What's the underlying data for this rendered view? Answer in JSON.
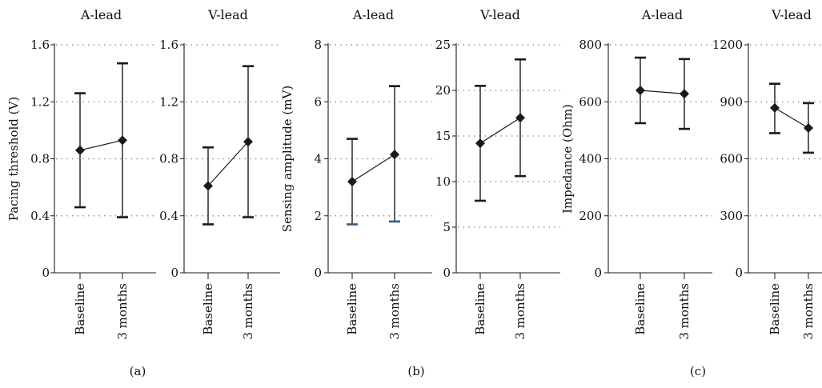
{
  "chart_data": [
    {
      "type": "line",
      "panel": "(a)",
      "title": "A-lead",
      "ylabel": "Pacing threshold (V)",
      "categories": [
        "Baseline",
        "3 months"
      ],
      "ylim": [
        0,
        1.6
      ],
      "yticks": [
        0,
        0.4,
        0.8,
        1.2,
        1.6
      ],
      "ytick_labels": [
        "0",
        "0.4",
        "0.8",
        "1.2",
        "1.6"
      ],
      "grid": "horizontal dotted",
      "series": [
        {
          "values": [
            0.86,
            0.93
          ],
          "err_low": [
            0.46,
            0.39
          ],
          "err_high": [
            1.26,
            1.47
          ]
        }
      ]
    },
    {
      "type": "line",
      "panel": "(a)",
      "title": "V-lead",
      "ylabel": "",
      "categories": [
        "Baseline",
        "3 months"
      ],
      "ylim": [
        0,
        1.6
      ],
      "yticks": [
        0,
        0.4,
        0.8,
        1.2,
        1.6
      ],
      "ytick_labels": [
        "0",
        "0.4",
        "0.8",
        "1.2",
        "1.6"
      ],
      "grid": "horizontal dotted",
      "series": [
        {
          "values": [
            0.61,
            0.92
          ],
          "err_low": [
            0.34,
            0.39
          ],
          "err_high": [
            0.88,
            1.45
          ]
        }
      ]
    },
    {
      "type": "line",
      "panel": "(b)",
      "title": "A-lead",
      "ylabel": "Sensing amplitude (mV)",
      "categories": [
        "Baseline",
        "3 months"
      ],
      "ylim": [
        0,
        8
      ],
      "yticks": [
        0,
        2,
        4,
        6,
        8
      ],
      "ytick_labels": [
        "0",
        "2",
        "4",
        "6",
        "8"
      ],
      "grid": "horizontal dotted",
      "series": [
        {
          "values": [
            3.2,
            4.15
          ],
          "err_low": [
            1.7,
            1.8
          ],
          "err_high": [
            4.7,
            6.55
          ]
        }
      ]
    },
    {
      "type": "line",
      "panel": "(b)",
      "title": "V-lead",
      "ylabel": "",
      "categories": [
        "Baseline",
        "3 months"
      ],
      "ylim": [
        0,
        25
      ],
      "yticks": [
        0,
        5,
        10,
        15,
        20,
        25
      ],
      "ytick_labels": [
        "0",
        "5",
        "10",
        "15",
        "20",
        "25"
      ],
      "grid": "horizontal dotted",
      "series": [
        {
          "values": [
            14.2,
            17.0
          ],
          "err_low": [
            7.9,
            10.6
          ],
          "err_high": [
            20.5,
            23.4
          ]
        }
      ]
    },
    {
      "type": "line",
      "panel": "(c)",
      "title": "A-lead",
      "ylabel": "Impedance (Ohm)",
      "categories": [
        "Baseline",
        "3 months"
      ],
      "ylim": [
        0,
        800
      ],
      "yticks": [
        0,
        200,
        400,
        600,
        800
      ],
      "ytick_labels": [
        "0",
        "200",
        "400",
        "600",
        "800"
      ],
      "grid": "horizontal dotted",
      "series": [
        {
          "values": [
            640,
            628
          ],
          "err_low": [
            525,
            505
          ],
          "err_high": [
            755,
            750
          ]
        }
      ]
    },
    {
      "type": "line",
      "panel": "(c)",
      "title": "V-lead",
      "ylabel": "",
      "categories": [
        "Baseline",
        "3 months"
      ],
      "ylim": [
        0,
        1200
      ],
      "yticks": [
        0,
        300,
        600,
        900,
        1200
      ],
      "ytick_labels": [
        "0",
        "300",
        "600",
        "900",
        "1200"
      ],
      "grid": "horizontal dotted",
      "series": [
        {
          "values": [
            868,
            762
          ],
          "err_low": [
            735,
            632
          ],
          "err_high": [
            995,
            893
          ]
        }
      ]
    }
  ],
  "panel_labels": [
    "(a)",
    "(b)",
    "(c)"
  ],
  "colors": {
    "line": "#1a1a1a",
    "grid": "#666666",
    "errcap_b_lower": "#2f5f8a"
  }
}
